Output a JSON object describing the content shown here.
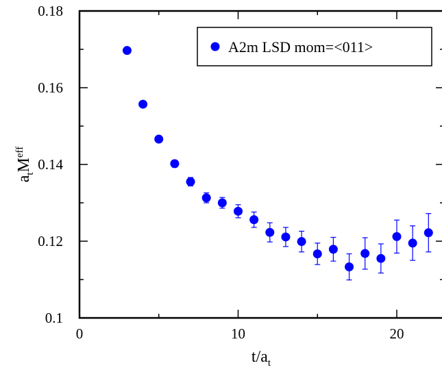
{
  "chart_data": {
    "type": "scatter",
    "title": "",
    "xlabel": {
      "main": "t/a",
      "sub": "t"
    },
    "ylabel": {
      "main": "a",
      "sub1": "t",
      "mid": "M",
      "sub2": "eff"
    },
    "xlim": [
      0,
      22.5
    ],
    "ylim": [
      0.1,
      0.18
    ],
    "x_ticks": [
      0,
      10,
      20
    ],
    "x_tick_labels": [
      "0",
      "10",
      "20"
    ],
    "y_ticks": [
      0.1,
      0.12,
      0.14,
      0.16,
      0.18
    ],
    "y_tick_labels": [
      "0.1",
      "0.12",
      "0.14",
      "0.16",
      "0.18"
    ],
    "grid": false,
    "legend_position": "top-right",
    "series": [
      {
        "name": "A2m LSD mom=<011>",
        "color": "#0000ff",
        "marker": "circle",
        "x": [
          3,
          4,
          5,
          6,
          7,
          8,
          9,
          10,
          11,
          12,
          13,
          14,
          15,
          16,
          17,
          18,
          19,
          20,
          21,
          22
        ],
        "y": [
          0.1697,
          0.1557,
          0.1466,
          0.1402,
          0.1355,
          0.1313,
          0.13,
          0.1278,
          0.1256,
          0.1223,
          0.1211,
          0.1199,
          0.1167,
          0.1179,
          0.1133,
          0.1168,
          0.1155,
          0.1212,
          0.1195,
          0.1222
        ],
        "err": [
          0.0003,
          0.0004,
          0.0007,
          0.0009,
          0.0011,
          0.0013,
          0.0014,
          0.0017,
          0.002,
          0.0025,
          0.0025,
          0.0027,
          0.0028,
          0.0031,
          0.0034,
          0.0041,
          0.0038,
          0.0043,
          0.0045,
          0.005
        ]
      }
    ]
  }
}
